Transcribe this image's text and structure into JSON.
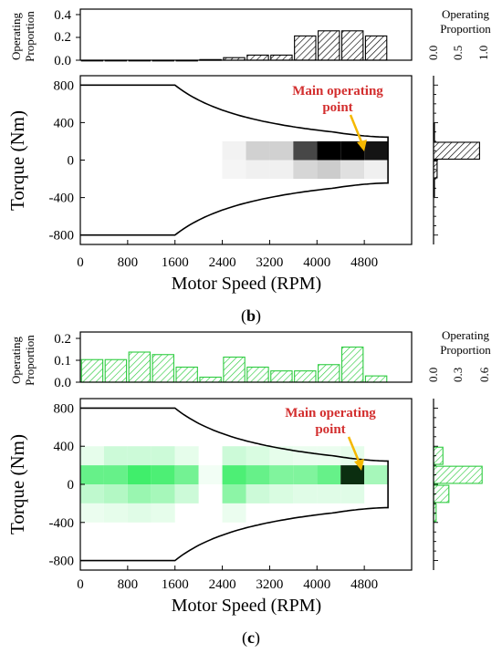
{
  "colors": {
    "hatch_b": "#000000",
    "hatch_c": "#2ecc40",
    "annotation_text": "#d32f2f",
    "arrow": "#f5b800",
    "heat_b": "#000000",
    "heat_c_mid": "#00e83a",
    "heat_c_max": "#0b2e10"
  },
  "panel_b": {
    "label_open": "(",
    "label_letter": "b",
    "label_close": ")",
    "top_ylabel_line1": "Operating",
    "top_ylabel_line2": "Proportion",
    "right_label_line1": "Operating",
    "right_label_line2": "Proportion",
    "xlabel": "Motor Speed (RPM)",
    "ylabel": "Torque (Nm)",
    "annotation_line1": "Main operating",
    "annotation_line2": "point",
    "top_yticks": [
      "0.0",
      "0.2",
      "0.4"
    ],
    "right_xticks": [
      "0.0",
      "0.5",
      "1.0"
    ],
    "x_ticks": [
      "0",
      "800",
      "1600",
      "2400",
      "3200",
      "4000",
      "4800"
    ],
    "y_ticks": [
      "800",
      "400",
      "0",
      "-400",
      "-800"
    ]
  },
  "panel_c": {
    "label_open": "(",
    "label_letter": "c",
    "label_close": ")",
    "top_ylabel_line1": "Operating",
    "top_ylabel_line2": "Proportion",
    "right_label_line1": "Operating",
    "right_label_line2": "Proportion",
    "xlabel": "Motor Speed (RPM)",
    "ylabel": "Torque (Nm)",
    "annotation_line1": "Main operating",
    "annotation_line2": "point",
    "top_yticks": [
      "0.0",
      "0.1",
      "0.2"
    ],
    "right_xticks": [
      "0.0",
      "0.3",
      "0.6"
    ],
    "x_ticks": [
      "0",
      "800",
      "1600",
      "2400",
      "3200",
      "4000",
      "4800"
    ],
    "y_ticks": [
      "800",
      "400",
      "0",
      "-400",
      "-800"
    ]
  },
  "chart_data": [
    {
      "panel": "b",
      "type": "bar",
      "x": [
        200,
        600,
        1000,
        1400,
        1800,
        2200,
        2600,
        3000,
        3400,
        3800,
        4200,
        4600,
        5000
      ],
      "values": [
        0.0,
        0.0,
        0.0,
        0.0,
        0.0,
        0.005,
        0.02,
        0.04,
        0.04,
        0.19,
        0.23,
        0.23,
        0.19
      ],
      "ylim": [
        0,
        0.4
      ],
      "ylabel": "Operating Proportion"
    },
    {
      "panel": "b",
      "type": "bar",
      "orientation": "horizontal",
      "y": [
        -300,
        -100,
        100,
        300
      ],
      "values": [
        0.01,
        0.07,
        0.9,
        0.01
      ],
      "xlim": [
        0,
        1.0
      ],
      "xlabel": "Operating Proportion"
    },
    {
      "panel": "b",
      "type": "heatmap",
      "xlabel": "Motor Speed (RPM)",
      "ylabel": "Torque (Nm)",
      "xlim": [
        0,
        5600
      ],
      "ylim": [
        -900,
        900
      ],
      "envelope": {
        "corner_speed": 1600,
        "max_torque": 800,
        "max_speed": 5200,
        "end_torque": 245
      },
      "cells": [
        {
          "x": [
            2400,
            2800
          ],
          "y": [
            0,
            200
          ],
          "v": 0.05
        },
        {
          "x": [
            2800,
            3200
          ],
          "y": [
            0,
            200
          ],
          "v": 0.18
        },
        {
          "x": [
            3200,
            3600
          ],
          "y": [
            0,
            200
          ],
          "v": 0.18
        },
        {
          "x": [
            3600,
            4000
          ],
          "y": [
            0,
            200
          ],
          "v": 0.72
        },
        {
          "x": [
            4000,
            4400
          ],
          "y": [
            0,
            200
          ],
          "v": 1.0
        },
        {
          "x": [
            4400,
            4800
          ],
          "y": [
            0,
            200
          ],
          "v": 1.0
        },
        {
          "x": [
            4800,
            5200
          ],
          "y": [
            0,
            200
          ],
          "v": 0.92
        },
        {
          "x": [
            2400,
            2800
          ],
          "y": [
            -200,
            0
          ],
          "v": 0.04
        },
        {
          "x": [
            2800,
            3200
          ],
          "y": [
            -200,
            0
          ],
          "v": 0.06
        },
        {
          "x": [
            3200,
            3600
          ],
          "y": [
            -200,
            0
          ],
          "v": 0.06
        },
        {
          "x": [
            3600,
            4000
          ],
          "y": [
            -200,
            0
          ],
          "v": 0.16
        },
        {
          "x": [
            4000,
            4400
          ],
          "y": [
            -200,
            0
          ],
          "v": 0.2
        },
        {
          "x": [
            4400,
            4800
          ],
          "y": [
            -200,
            0
          ],
          "v": 0.12
        },
        {
          "x": [
            4800,
            5200
          ],
          "y": [
            -200,
            0
          ],
          "v": 0.06
        }
      ],
      "annotation": "Main operating point",
      "annotation_at": [
        4600,
        100
      ]
    },
    {
      "panel": "c",
      "type": "bar",
      "x": [
        200,
        600,
        1000,
        1400,
        1800,
        2200,
        2600,
        3000,
        3400,
        3800,
        4200,
        4600,
        5000
      ],
      "values": [
        0.09,
        0.09,
        0.12,
        0.11,
        0.06,
        0.02,
        0.1,
        0.06,
        0.045,
        0.045,
        0.07,
        0.14,
        0.025
      ],
      "ylim": [
        0,
        0.2
      ],
      "ylabel": "Operating Proportion"
    },
    {
      "panel": "c",
      "type": "bar",
      "orientation": "horizontal",
      "y": [
        -300,
        -100,
        100,
        300
      ],
      "values": [
        0.03,
        0.18,
        0.57,
        0.11
      ],
      "xlim": [
        0,
        0.6
      ],
      "xlabel": "Operating Proportion"
    },
    {
      "panel": "c",
      "type": "heatmap",
      "xlabel": "Motor Speed (RPM)",
      "ylabel": "Torque (Nm)",
      "xlim": [
        0,
        5600
      ],
      "ylim": [
        -900,
        900
      ],
      "envelope": {
        "corner_speed": 1600,
        "max_torque": 800,
        "max_speed": 5200,
        "end_torque": 245
      },
      "cells": [
        {
          "x": [
            0,
            400
          ],
          "y": [
            200,
            400
          ],
          "v": 0.1
        },
        {
          "x": [
            400,
            800
          ],
          "y": [
            200,
            400
          ],
          "v": 0.2
        },
        {
          "x": [
            800,
            1200
          ],
          "y": [
            200,
            400
          ],
          "v": 0.2
        },
        {
          "x": [
            1200,
            1600
          ],
          "y": [
            200,
            400
          ],
          "v": 0.2
        },
        {
          "x": [
            1600,
            2000
          ],
          "y": [
            200,
            400
          ],
          "v": 0.1
        },
        {
          "x": [
            2400,
            2800
          ],
          "y": [
            200,
            400
          ],
          "v": 0.2
        },
        {
          "x": [
            2800,
            3200
          ],
          "y": [
            200,
            400
          ],
          "v": 0.15
        },
        {
          "x": [
            3200,
            3600
          ],
          "y": [
            200,
            400
          ],
          "v": 0.1
        },
        {
          "x": [
            3600,
            4000
          ],
          "y": [
            200,
            400
          ],
          "v": 0.08
        },
        {
          "x": [
            4000,
            4400
          ],
          "y": [
            200,
            400
          ],
          "v": 0.08
        },
        {
          "x": [
            4400,
            4800
          ],
          "y": [
            200,
            400
          ],
          "v": 0.1
        },
        {
          "x": [
            0,
            400
          ],
          "y": [
            0,
            200
          ],
          "v": 0.6
        },
        {
          "x": [
            400,
            800
          ],
          "y": [
            0,
            200
          ],
          "v": 0.6
        },
        {
          "x": [
            800,
            1200
          ],
          "y": [
            0,
            200
          ],
          "v": 0.75
        },
        {
          "x": [
            1200,
            1600
          ],
          "y": [
            0,
            200
          ],
          "v": 0.7
        },
        {
          "x": [
            1600,
            2000
          ],
          "y": [
            0,
            200
          ],
          "v": 0.55
        },
        {
          "x": [
            2000,
            2400
          ],
          "y": [
            0,
            200
          ],
          "v": 0.05
        },
        {
          "x": [
            2400,
            2800
          ],
          "y": [
            0,
            200
          ],
          "v": 0.7
        },
        {
          "x": [
            2800,
            3200
          ],
          "y": [
            0,
            200
          ],
          "v": 0.6
        },
        {
          "x": [
            3200,
            3600
          ],
          "y": [
            0,
            200
          ],
          "v": 0.5
        },
        {
          "x": [
            3600,
            4000
          ],
          "y": [
            0,
            200
          ],
          "v": 0.5
        },
        {
          "x": [
            4000,
            4400
          ],
          "y": [
            0,
            200
          ],
          "v": 0.6
        },
        {
          "x": [
            4400,
            4800
          ],
          "y": [
            0,
            200
          ],
          "v": 1.0
        },
        {
          "x": [
            4800,
            5200
          ],
          "y": [
            0,
            200
          ],
          "v": 0.35
        },
        {
          "x": [
            0,
            400
          ],
          "y": [
            -200,
            0
          ],
          "v": 0.25
        },
        {
          "x": [
            400,
            800
          ],
          "y": [
            -200,
            0
          ],
          "v": 0.3
        },
        {
          "x": [
            800,
            1200
          ],
          "y": [
            -200,
            0
          ],
          "v": 0.4
        },
        {
          "x": [
            1200,
            1600
          ],
          "y": [
            -200,
            0
          ],
          "v": 0.35
        },
        {
          "x": [
            1600,
            2000
          ],
          "y": [
            -200,
            0
          ],
          "v": 0.2
        },
        {
          "x": [
            2400,
            2800
          ],
          "y": [
            -200,
            0
          ],
          "v": 0.45
        },
        {
          "x": [
            2800,
            3200
          ],
          "y": [
            -200,
            0
          ],
          "v": 0.2
        },
        {
          "x": [
            3200,
            3600
          ],
          "y": [
            -200,
            0
          ],
          "v": 0.15
        },
        {
          "x": [
            3600,
            4000
          ],
          "y": [
            -200,
            0
          ],
          "v": 0.12
        },
        {
          "x": [
            4000,
            4400
          ],
          "y": [
            -200,
            0
          ],
          "v": 0.12
        },
        {
          "x": [
            4400,
            4800
          ],
          "y": [
            -200,
            0
          ],
          "v": 0.12
        },
        {
          "x": [
            0,
            400
          ],
          "y": [
            -400,
            -200
          ],
          "v": 0.08
        },
        {
          "x": [
            400,
            800
          ],
          "y": [
            -400,
            -200
          ],
          "v": 0.1
        },
        {
          "x": [
            800,
            1200
          ],
          "y": [
            -400,
            -200
          ],
          "v": 0.12
        },
        {
          "x": [
            1200,
            1600
          ],
          "y": [
            -400,
            -200
          ],
          "v": 0.1
        },
        {
          "x": [
            2400,
            2800
          ],
          "y": [
            -400,
            -200
          ],
          "v": 0.08
        }
      ],
      "annotation": "Main operating point",
      "annotation_at": [
        4600,
        100
      ]
    }
  ]
}
